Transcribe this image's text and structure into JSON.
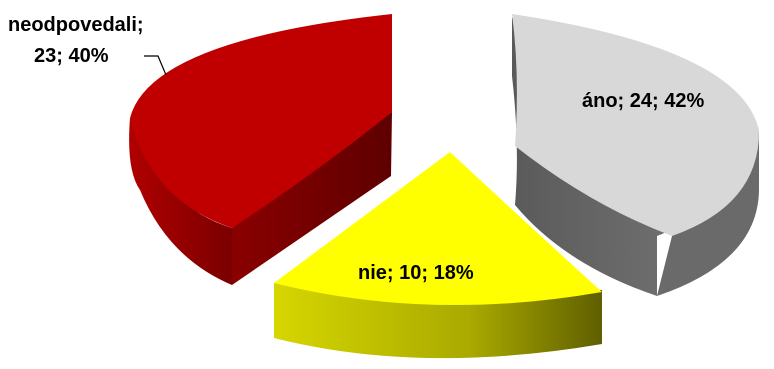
{
  "chart_data": {
    "type": "pie",
    "variant": "3d-exploded",
    "title": "",
    "slices": [
      {
        "name": "áno",
        "value": 24,
        "percent": 42,
        "label": "áno; 24; 42%",
        "color": "#d8d8d8",
        "side_color": "#6e6e6e"
      },
      {
        "name": "nie",
        "value": 10,
        "percent": 18,
        "label": "nie; 10; 18%",
        "color": "#ffff00",
        "side_color": "#8a8a00"
      },
      {
        "name": "neodpovedali",
        "value": 23,
        "percent": 40,
        "label_lines": [
          "neodpovedali;",
          "23; 40%"
        ],
        "color": "#c00000",
        "side_color": "#7a0000"
      }
    ]
  }
}
